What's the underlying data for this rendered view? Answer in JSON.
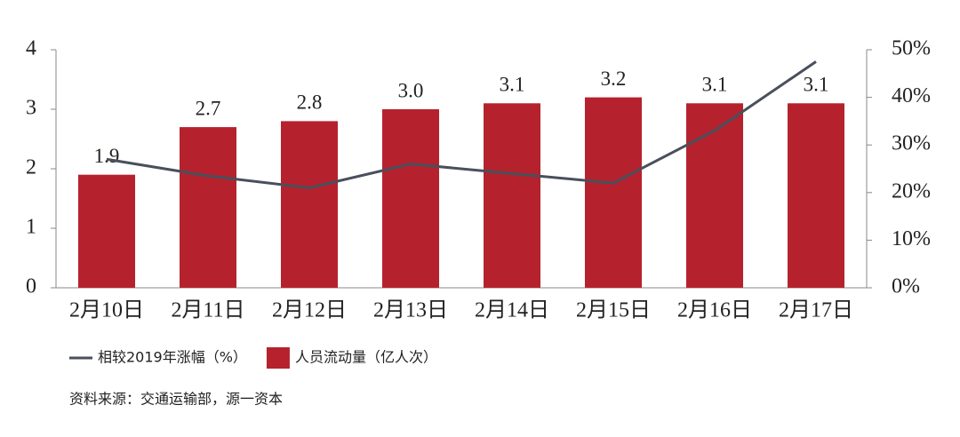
{
  "chart_data": {
    "type": "bar",
    "categories": [
      "2月10日",
      "2月11日",
      "2月12日",
      "2月13日",
      "2月14日",
      "2月15日",
      "2月16日",
      "2月17日"
    ],
    "series": [
      {
        "name": "人员流动量（亿人次）",
        "type": "bar",
        "color": "#b5222d",
        "axis": "y",
        "values": [
          1.9,
          2.7,
          2.8,
          3.0,
          3.1,
          3.2,
          3.1,
          3.1
        ],
        "value_labels": [
          "1.9",
          "2.7",
          "2.8",
          "3.0",
          "3.1",
          "3.2",
          "3.1",
          "3.1"
        ]
      },
      {
        "name": "相较2019年涨幅（%）",
        "type": "line",
        "color": "#4a4f5c",
        "axis": "y2",
        "values": [
          27,
          23.5,
          21,
          26,
          24,
          22,
          33,
          47.5
        ]
      }
    ],
    "legend_order": [
      1,
      0
    ],
    "ylim": [
      0,
      4
    ],
    "yticks": [
      0,
      1,
      2,
      3,
      4
    ],
    "y2lim": [
      0,
      50
    ],
    "y2ticks": [
      {
        "value": 0,
        "label": "0%"
      },
      {
        "value": 10,
        "label": "10%"
      },
      {
        "value": 20,
        "label": "20%"
      },
      {
        "value": 30,
        "label": "30%"
      },
      {
        "value": 40,
        "label": "40%"
      },
      {
        "value": 50,
        "label": "50%"
      }
    ],
    "legend_position": "bottom",
    "source": "资料来源：交通运输部，源一资本"
  }
}
